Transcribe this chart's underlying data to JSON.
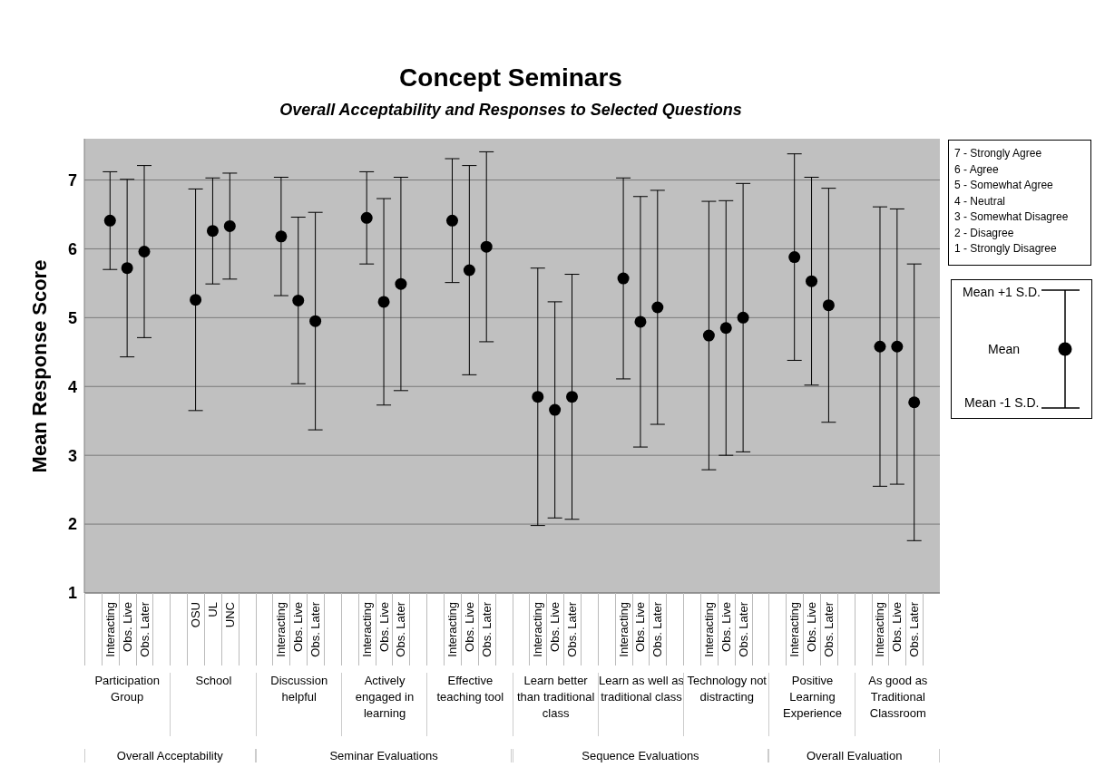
{
  "chart_data": {
    "type": "scatter",
    "title": "Concept Seminars",
    "subtitle": "Overall Acceptability and Responses to Selected Questions",
    "ylabel": "Mean Response Score",
    "categories": [
      null,
      "Interacting",
      "Obs. Live",
      "Obs. Later",
      null,
      null,
      "OSU",
      "UL",
      "UNC",
      null,
      null,
      "Interacting",
      "Obs. Live",
      "Obs. Later",
      null,
      null,
      "Interacting",
      "Obs. Live",
      "Obs. Later",
      null,
      null,
      "Interacting",
      "Obs. Live",
      "Obs. Later",
      null,
      null,
      "Interacting",
      "Obs. Live",
      "Obs. Later",
      null,
      null,
      "Interacting",
      "Obs. Live",
      "Obs. Later",
      null,
      null,
      "Interacting",
      "Obs. Live",
      "Obs. Later",
      null,
      null,
      "Interacting",
      "Obs. Live",
      "Obs. Later",
      null,
      null,
      "Interacting",
      "Obs. Live",
      "Obs. Later",
      null
    ],
    "values": [
      null,
      6.41,
      5.72,
      5.96,
      null,
      null,
      5.26,
      6.26,
      6.33,
      null,
      null,
      6.18,
      5.25,
      4.95,
      null,
      null,
      6.45,
      5.23,
      5.49,
      null,
      null,
      6.41,
      5.69,
      6.03,
      null,
      null,
      3.85,
      3.66,
      3.85,
      null,
      null,
      5.57,
      4.94,
      5.15,
      null,
      null,
      4.74,
      4.85,
      5.0,
      null,
      null,
      5.88,
      5.53,
      5.18,
      null,
      null,
      4.58,
      4.58,
      3.77,
      null
    ],
    "errors": [
      null,
      0.71,
      1.29,
      1.25,
      null,
      null,
      1.61,
      0.77,
      0.77,
      null,
      null,
      0.86,
      1.21,
      1.58,
      null,
      null,
      0.67,
      1.5,
      1.55,
      null,
      null,
      0.9,
      1.52,
      1.38,
      null,
      null,
      1.87,
      1.57,
      1.78,
      null,
      null,
      1.46,
      1.82,
      1.7,
      null,
      null,
      1.95,
      1.85,
      1.95,
      null,
      null,
      1.5,
      1.51,
      1.7,
      null,
      null,
      2.03,
      2.0,
      2.01,
      null
    ],
    "color": "#000000",
    "marker": "circle",
    "grid": "y",
    "ylim": [
      1,
      7.6
    ],
    "yticks": [
      1,
      2,
      3,
      4,
      5,
      6,
      7
    ],
    "annotations": [
      "Participation Group",
      "School",
      "Discussion helpful",
      "Actively engaged in learning",
      "Effective teaching tool",
      "Learn better than traditional class",
      "Learn as well as traditional class",
      "Technology not distracting",
      "Positive Learning Experience",
      "As good as Traditional Classroom",
      "Overall Acceptability",
      "Seminar Evaluations",
      "Sequence Evaluations",
      "Overall Evaluation",
      "7 - Strongly Agree",
      "6 - Agree",
      "5 - Somewhat Agree",
      "4 - Neutral",
      "3 - Somewhat Disagree",
      "2 - Disagree",
      "1 - Strongly Disagree",
      "Mean +1 S.D.",
      "Mean",
      "Mean -1 S.D."
    ]
  }
}
